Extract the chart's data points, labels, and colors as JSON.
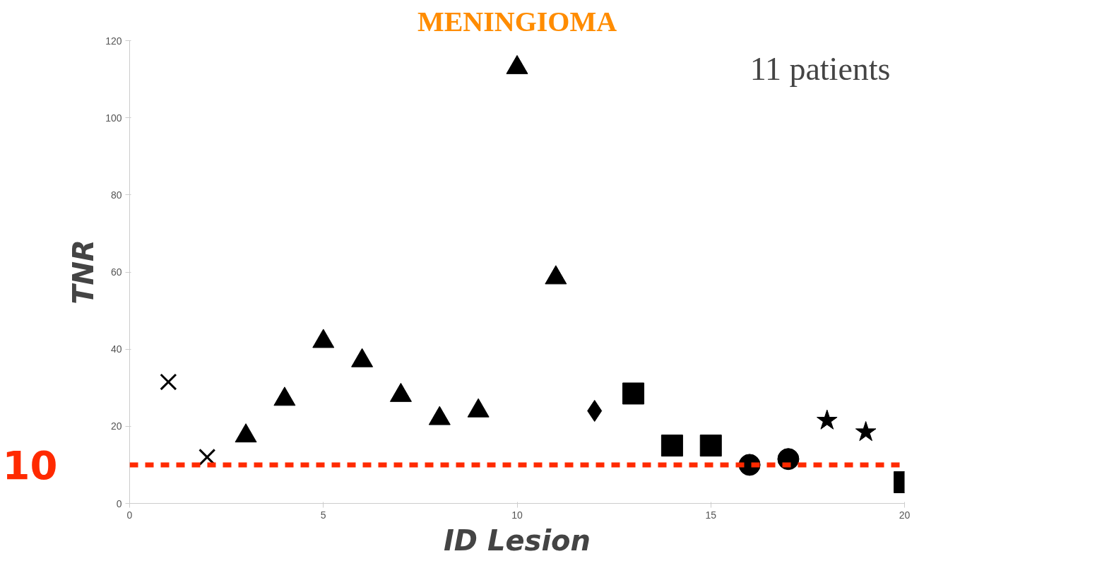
{
  "chart_data": {
    "type": "scatter",
    "title": "MENINGIOMA",
    "xlabel": "ID Lesion",
    "ylabel": "TNR",
    "xlim": [
      0,
      20
    ],
    "xticks": [
      0,
      5,
      10,
      15,
      20
    ],
    "ylim": [
      0,
      120
    ],
    "yticks": [
      0,
      20,
      40,
      60,
      80,
      100,
      120
    ],
    "grid": false,
    "annotations": [
      "11 patients"
    ],
    "ref_lines": [
      {
        "axis": "y",
        "value": 10,
        "label": "10",
        "color": "#ff2a00",
        "line_style": "dashed"
      }
    ],
    "series": [
      {
        "color": "#000000",
        "marker": "cross",
        "x": [
          1,
          2
        ],
        "values": [
          31.5,
          12
        ]
      },
      {
        "color": "#000000",
        "marker": "triangle",
        "x": [
          3,
          4,
          5
        ],
        "values": [
          17.5,
          27,
          42
        ]
      },
      {
        "color": "#000000",
        "marker": "triangle",
        "x": [
          6
        ],
        "values": [
          37
        ]
      },
      {
        "color": "#000000",
        "marker": "triangle",
        "x": [
          7,
          8,
          9
        ],
        "values": [
          28,
          22,
          24
        ]
      },
      {
        "color": "#000000",
        "marker": "triangle",
        "x": [
          10,
          11
        ],
        "values": [
          113,
          58.5
        ]
      },
      {
        "color": "#000000",
        "marker": "diamond",
        "x": [
          12
        ],
        "values": [
          24
        ]
      },
      {
        "color": "#000000",
        "marker": "square",
        "x": [
          13,
          14,
          15
        ],
        "values": [
          28.5,
          15,
          15
        ]
      },
      {
        "color": "#000000",
        "marker": "circle",
        "x": [
          16,
          17
        ],
        "values": [
          10,
          11.5
        ]
      },
      {
        "color": "#000000",
        "marker": "star",
        "x": [
          18,
          19
        ],
        "values": [
          21.5,
          18.5
        ]
      },
      {
        "color": "#000000",
        "marker": "square",
        "x": [
          20
        ],
        "values": [
          5.5
        ]
      }
    ]
  }
}
